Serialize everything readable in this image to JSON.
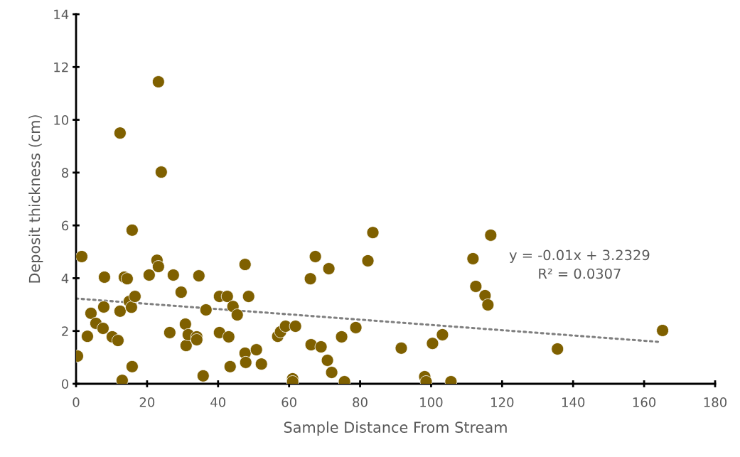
{
  "chart_data": {
    "type": "scatter",
    "xlabel": "Sample Distance From Stream",
    "ylabel": "Deposit thickness (cm)",
    "xlim": [
      0,
      180
    ],
    "xticks": [
      0,
      20,
      40,
      60,
      80,
      100,
      120,
      140,
      160,
      180
    ],
    "ylim": [
      0,
      14
    ],
    "yticks": [
      0,
      2,
      4,
      6,
      8,
      10,
      12,
      14
    ],
    "grid": false,
    "legend": false,
    "marker": "circle",
    "annotations": [
      "y = -0.01x + 3.2329\nR² = 0.0307"
    ],
    "series": [
      {
        "color": "#7f6000",
        "x": [
          0.4,
          1.6,
          3.2,
          4.2,
          5.6,
          7.6,
          7.8,
          8.0,
          10.2,
          11.8,
          12.4,
          12.4,
          13.0,
          13.6,
          14.4,
          15.0,
          15.6,
          15.8,
          15.8,
          16.6,
          20.6,
          22.8,
          23.2,
          23.2,
          24.0,
          26.4,
          27.4,
          29.6,
          30.8,
          31.0,
          31.6,
          34.0,
          34.0,
          34.6,
          35.8,
          36.6,
          40.4,
          40.4,
          42.6,
          43.0,
          43.4,
          44.2,
          45.4,
          47.6,
          47.6,
          47.8,
          48.6,
          50.8,
          52.2,
          56.8,
          57.6,
          59.0,
          61.0,
          61.0,
          61.8,
          66.0,
          66.2,
          67.4,
          69.0,
          70.8,
          71.2,
          72.0,
          74.8,
          75.6,
          78.8,
          82.2,
          83.6,
          91.6,
          98.2,
          98.6,
          100.4,
          103.2,
          105.6,
          111.8,
          112.6,
          115.2,
          116.0,
          116.8,
          135.6,
          165.2
        ],
        "values": [
          1.05,
          4.82,
          1.8,
          2.67,
          2.29,
          2.1,
          2.91,
          4.04,
          1.78,
          1.64,
          9.5,
          2.75,
          0.13,
          4.04,
          3.98,
          3.12,
          2.9,
          5.82,
          0.65,
          3.31,
          4.12,
          4.68,
          11.44,
          4.44,
          8.02,
          1.94,
          4.12,
          3.47,
          2.26,
          1.45,
          1.86,
          1.78,
          1.67,
          4.09,
          0.3,
          2.8,
          3.31,
          1.94,
          3.31,
          1.78,
          0.65,
          2.93,
          2.61,
          4.52,
          1.16,
          0.81,
          3.31,
          1.29,
          0.75,
          1.8,
          1.97,
          2.18,
          0.19,
          0.08,
          2.18,
          3.98,
          1.48,
          4.82,
          1.4,
          0.89,
          4.36,
          0.43,
          1.78,
          0.08,
          2.13,
          4.66,
          5.73,
          1.35,
          0.27,
          0.08,
          1.53,
          1.86,
          0.08,
          4.74,
          3.69,
          3.34,
          2.99,
          5.63,
          1.32,
          2.02
        ]
      },
      {
        "type": "line",
        "color": "#7f7f7f",
        "line_style": "dotted",
        "marker": "none",
        "x": [
          0,
          164
        ],
        "values": [
          3.23,
          1.59
        ]
      }
    ]
  }
}
